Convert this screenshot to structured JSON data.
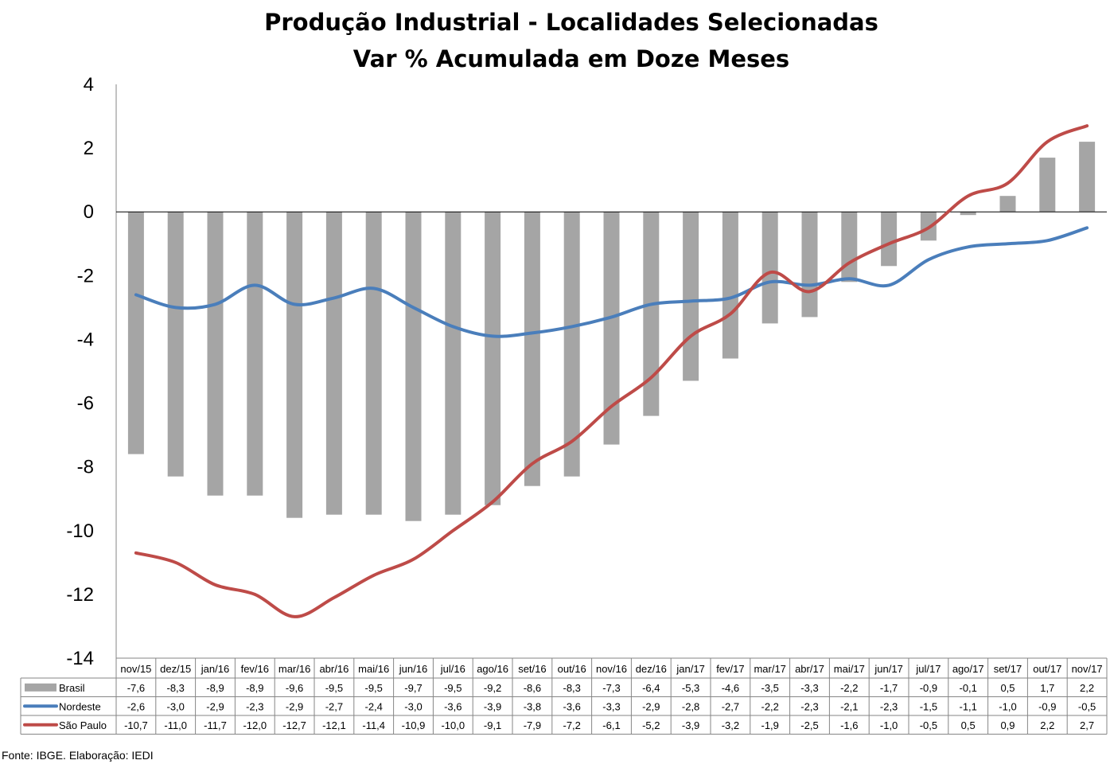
{
  "chart_data": {
    "type": "bar+line",
    "title_line1": "Produção Industrial - Localidades Selecionadas",
    "title_line2": "Var % Acumulada em Doze Meses",
    "ylim": [
      -14,
      4
    ],
    "yticks": [
      "4",
      "2",
      "0",
      "-2",
      "-4",
      "-6",
      "-8",
      "-10",
      "-12",
      "-14"
    ],
    "ytick_values": [
      4,
      2,
      0,
      -2,
      -4,
      -6,
      -8,
      -10,
      -12,
      -14
    ],
    "grid": false,
    "categories": [
      "nov/15",
      "dez/15",
      "jan/16",
      "fev/16",
      "mar/16",
      "abr/16",
      "mai/16",
      "jun/16",
      "jul/16",
      "ago/16",
      "set/16",
      "out/16",
      "nov/16",
      "dez/16",
      "jan/17",
      "fev/17",
      "mar/17",
      "abr/17",
      "mai/17",
      "jun/17",
      "jul/17",
      "ago/17",
      "set/17",
      "out/17",
      "nov/17"
    ],
    "series": [
      {
        "name": "Brasil",
        "kind": "bar",
        "color": "#a5a5a5",
        "values": [
          -7.6,
          -8.3,
          -8.9,
          -8.9,
          -9.6,
          -9.5,
          -9.5,
          -9.7,
          -9.5,
          -9.2,
          -8.6,
          -8.3,
          -7.3,
          -6.4,
          -5.3,
          -4.6,
          -3.5,
          -3.3,
          -2.2,
          -1.7,
          -0.9,
          -0.1,
          0.5,
          1.7,
          2.2
        ],
        "labels": [
          "-7,6",
          "-8,3",
          "-8,9",
          "-8,9",
          "-9,6",
          "-9,5",
          "-9,5",
          "-9,7",
          "-9,5",
          "-9,2",
          "-8,6",
          "-8,3",
          "-7,3",
          "-6,4",
          "-5,3",
          "-4,6",
          "-3,5",
          "-3,3",
          "-2,2",
          "-1,7",
          "-0,9",
          "-0,1",
          "0,5",
          "1,7",
          "2,2"
        ]
      },
      {
        "name": "Nordeste",
        "kind": "line",
        "color": "#4a7ebb",
        "values": [
          -2.6,
          -3.0,
          -2.9,
          -2.3,
          -2.9,
          -2.7,
          -2.4,
          -3.0,
          -3.6,
          -3.9,
          -3.8,
          -3.6,
          -3.3,
          -2.9,
          -2.8,
          -2.7,
          -2.2,
          -2.3,
          -2.1,
          -2.3,
          -1.5,
          -1.1,
          -1.0,
          -0.9,
          -0.5
        ],
        "labels": [
          "-2,6",
          "-3,0",
          "-2,9",
          "-2,3",
          "-2,9",
          "-2,7",
          "-2,4",
          "-3,0",
          "-3,6",
          "-3,9",
          "-3,8",
          "-3,6",
          "-3,3",
          "-2,9",
          "-2,8",
          "-2,7",
          "-2,2",
          "-2,3",
          "-2,1",
          "-2,3",
          "-1,5",
          "-1,1",
          "-1,0",
          "-0,9",
          "-0,5"
        ]
      },
      {
        "name": "São Paulo",
        "kind": "line",
        "color": "#be4b48",
        "values": [
          -10.7,
          -11.0,
          -11.7,
          -12.0,
          -12.7,
          -12.1,
          -11.4,
          -10.9,
          -10.0,
          -9.1,
          -7.9,
          -7.2,
          -6.1,
          -5.2,
          -3.9,
          -3.2,
          -1.9,
          -2.5,
          -1.6,
          -1.0,
          -0.5,
          0.5,
          0.9,
          2.2,
          2.7
        ],
        "labels": [
          "-10,7",
          "-11,0",
          "-11,7",
          "-12,0",
          "-12,7",
          "-12,1",
          "-11,4",
          "-10,9",
          "-10,0",
          "-9,1",
          "-7,9",
          "-7,2",
          "-6,1",
          "-5,2",
          "-3,9",
          "-3,2",
          "-1,9",
          "-2,5",
          "-1,6",
          "-1,0",
          "-0,5",
          "0,5",
          "0,9",
          "2,2",
          "2,7"
        ]
      }
    ],
    "legend": "data-table"
  },
  "source_note": "Fonte: IBGE. Elaboração: IEDI"
}
